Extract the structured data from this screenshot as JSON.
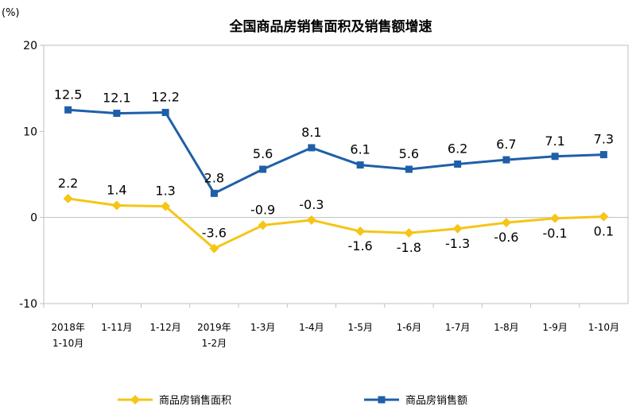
{
  "chart_data": {
    "type": "line",
    "title": "全国商品房销售面积及销售额增速",
    "y_unit": "(%)",
    "ylim": [
      -10,
      20
    ],
    "yticks": [
      "-10",
      "0",
      "10",
      "20"
    ],
    "grid": false,
    "legend_position": "bottom",
    "categories": [
      [
        "2018年",
        "1-10月"
      ],
      [
        "1-11月"
      ],
      [
        "1-12月"
      ],
      [
        "2019年",
        "1-2月"
      ],
      [
        "1-3月"
      ],
      [
        "1-4月"
      ],
      [
        "1-5月"
      ],
      [
        "1-6月"
      ],
      [
        "1-7月"
      ],
      [
        "1-8月"
      ],
      [
        "1-9月"
      ],
      [
        "1-10月"
      ]
    ],
    "series": [
      {
        "name": "商品房销售面积",
        "color": "#f5c518",
        "marker": "diamond",
        "values": [
          2.2,
          1.4,
          1.3,
          -3.6,
          -0.9,
          -0.3,
          -1.6,
          -1.8,
          -1.3,
          -0.6,
          -0.1,
          0.1
        ],
        "labels": [
          "2.2",
          "1.4",
          "1.3",
          "-3.6",
          "-0.9",
          "-0.3",
          "-1.6",
          "-1.8",
          "-1.3",
          "-0.6",
          "-0.1",
          "0.1"
        ],
        "label_side": [
          "above",
          "above",
          "above",
          "above",
          "above",
          "above",
          "below",
          "below",
          "below",
          "below",
          "below",
          "below"
        ]
      },
      {
        "name": "商品房销售额",
        "color": "#1f5fa8",
        "marker": "square",
        "values": [
          12.5,
          12.1,
          12.2,
          2.8,
          5.6,
          8.1,
          6.1,
          5.6,
          6.2,
          6.7,
          7.1,
          7.3
        ],
        "labels": [
          "12.5",
          "12.1",
          "12.2",
          "2.8",
          "5.6",
          "8.1",
          "6.1",
          "5.6",
          "6.2",
          "6.7",
          "7.1",
          "7.3"
        ],
        "label_side": [
          "above",
          "above",
          "above",
          "above",
          "above",
          "above",
          "above",
          "above",
          "above",
          "above",
          "above",
          "above"
        ]
      }
    ]
  }
}
